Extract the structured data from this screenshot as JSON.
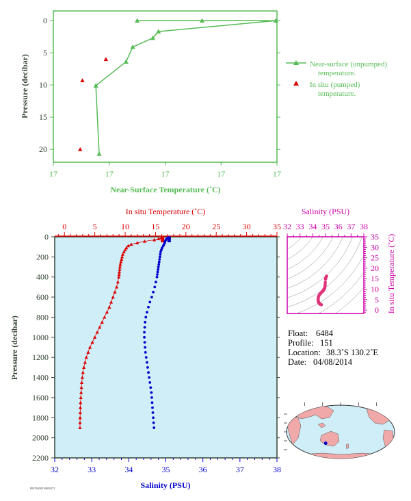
{
  "colors": {
    "near_surface": "#55bb55",
    "in_situ_temp": "#dd0000",
    "salinity": "#0000cc",
    "magenta": "#cc00aa",
    "axis_dark": "#334433",
    "panel_bg": "#cfeef8",
    "land": "#f0a8a8",
    "ocean": "#cfeef8"
  },
  "chart_data": [
    {
      "type": "line",
      "id": "near-surface-panel",
      "xlabel": "Near-Surface Temperature (˚C)",
      "ylabel": "Pressure (decibar)",
      "x_tick_labels": [
        "17",
        "17",
        "17",
        "17",
        "17"
      ],
      "y_tick_labels": [
        "0",
        "5",
        "10",
        "15",
        "20"
      ],
      "y_ticks": [
        0,
        5,
        10,
        15,
        20
      ],
      "xlim": [
        16.8,
        17.8
      ],
      "ylim": [
        22,
        -1.5
      ],
      "x_scale_note": "tick labels rounded; all ticks print 17",
      "series": [
        {
          "name": "Near-surface (unpumped) temperature.",
          "marker": "triangle-line",
          "x": [
            17.175,
            17.465,
            17.795,
            17.27,
            17.245,
            17.155,
            17.125,
            16.99,
            17.005
          ],
          "y": [
            0.0,
            0.0,
            0.0,
            1.7,
            2.7,
            4.1,
            6.4,
            10.1,
            20.7
          ]
        },
        {
          "name": "In situ (pumped) temperature.",
          "marker": "triangle",
          "x": [
            17.035,
            16.93,
            16.92
          ],
          "y": [
            6.0,
            9.3,
            20.0
          ]
        }
      ]
    },
    {
      "type": "line",
      "id": "profile-panel",
      "top_axis_label": "In situ Temperature (˚C)",
      "bottom_axis_label": "Salinity (PSU)",
      "ylabel": "Pressure (decibar)",
      "temp_ticks": [
        0,
        5,
        10,
        15,
        20,
        25,
        30,
        35
      ],
      "sal_ticks": [
        32,
        33,
        34,
        35,
        36,
        37,
        38
      ],
      "pres_ticks": [
        0,
        200,
        400,
        600,
        800,
        1000,
        1200,
        1400,
        1600,
        1800,
        2000,
        2200
      ],
      "temp_lim": [
        -1.6,
        35
      ],
      "sal_lim": [
        32,
        38
      ],
      "pres_lim": [
        0,
        2200
      ],
      "series": [
        {
          "name": "In situ Temperature",
          "marker": "triangle",
          "pressure": [
            5,
            10,
            20,
            30,
            45,
            60,
            75,
            90,
            110,
            130,
            150,
            175,
            200,
            225,
            250,
            275,
            300,
            325,
            350,
            375,
            400,
            450,
            500,
            550,
            600,
            650,
            700,
            750,
            800,
            850,
            900,
            950,
            1000,
            1050,
            1100,
            1150,
            1200,
            1250,
            1300,
            1350,
            1400,
            1450,
            1500,
            1550,
            1600,
            1650,
            1700,
            1750,
            1800,
            1850,
            1900
          ],
          "values": [
            16.2,
            16.0,
            15.5,
            14.8,
            13.2,
            12.0,
            11.0,
            10.5,
            10.2,
            10.0,
            9.8,
            9.6,
            9.5,
            9.4,
            9.3,
            9.2,
            9.15,
            9.1,
            9.05,
            9.0,
            8.95,
            8.8,
            8.6,
            8.3,
            8.0,
            7.7,
            7.4,
            7.0,
            6.6,
            6.2,
            5.8,
            5.4,
            5.0,
            4.6,
            4.2,
            3.9,
            3.6,
            3.4,
            3.2,
            3.05,
            2.95,
            2.85,
            2.8,
            2.75,
            2.7,
            2.65,
            2.62,
            2.6,
            2.58,
            2.57,
            2.56
          ]
        },
        {
          "name": "Salinity",
          "marker": "circle",
          "pressure": [
            5,
            10,
            20,
            30,
            45,
            60,
            75,
            90,
            110,
            130,
            150,
            175,
            200,
            225,
            250,
            275,
            300,
            325,
            350,
            375,
            400,
            450,
            500,
            550,
            600,
            650,
            700,
            750,
            800,
            850,
            900,
            950,
            1000,
            1050,
            1100,
            1150,
            1200,
            1250,
            1300,
            1350,
            1400,
            1450,
            1500,
            1550,
            1600,
            1650,
            1700,
            1750,
            1800,
            1850,
            1900
          ],
          "values": [
            35.08,
            35.05,
            35.02,
            35.0,
            34.98,
            34.97,
            34.95,
            34.93,
            34.9,
            34.88,
            34.86,
            34.85,
            34.84,
            34.83,
            34.82,
            34.81,
            34.8,
            34.79,
            34.78,
            34.77,
            34.76,
            34.73,
            34.7,
            34.66,
            34.62,
            34.57,
            34.53,
            34.49,
            34.46,
            34.44,
            34.43,
            34.42,
            34.42,
            34.43,
            34.44,
            34.45,
            34.47,
            34.49,
            34.51,
            34.53,
            34.55,
            34.57,
            34.59,
            34.61,
            34.62,
            34.63,
            34.64,
            34.65,
            34.66,
            34.67,
            34.68
          ]
        }
      ]
    },
    {
      "type": "scatter",
      "id": "ts-panel",
      "top_axis_label": "Salinity (PSU)",
      "right_axis_label": "In situ Temperature (˚C)",
      "sal_ticks": [
        32,
        33,
        34,
        35,
        36,
        37,
        38
      ],
      "temp_ticks": [
        0,
        5,
        10,
        15,
        20,
        25,
        30,
        35
      ],
      "sal_lim": [
        32,
        38
      ],
      "temp_lim": [
        -1.6,
        35
      ],
      "temp": [
        16.2,
        15.5,
        14.8,
        13.2,
        12.0,
        11.0,
        10.5,
        10.0,
        9.6,
        9.3,
        9.1,
        8.95,
        8.6,
        8.0,
        7.4,
        6.6,
        5.8,
        5.0,
        4.2,
        3.6,
        3.2,
        2.95,
        2.8,
        2.7,
        2.62,
        2.57
      ],
      "sal": [
        35.08,
        35.02,
        35.0,
        34.98,
        34.97,
        34.95,
        34.93,
        34.88,
        34.85,
        34.82,
        34.79,
        34.76,
        34.7,
        34.62,
        34.53,
        34.46,
        34.43,
        34.42,
        34.44,
        34.47,
        34.51,
        34.55,
        34.59,
        34.62,
        34.64,
        34.67
      ]
    }
  ],
  "legend": {
    "near_surface_1": "Near-surface (unpumped)",
    "near_surface_2": "temperature.",
    "in_situ_1": "In situ (pumped)",
    "in_situ_2": "temperature."
  },
  "float_info": {
    "float_label": "Float:",
    "float_value": "6484",
    "profile_label": "Profile:",
    "profile_value": "151",
    "location_label": "Location:",
    "location_value": "38.3˚S  130.2˚E",
    "date_label": "Date:",
    "date_value": "04/08/2014"
  },
  "map": {
    "float_lat": -38.3,
    "float_lon": 130.2
  },
  "footer": {
    "stamp": "F0070403D 00050273"
  }
}
